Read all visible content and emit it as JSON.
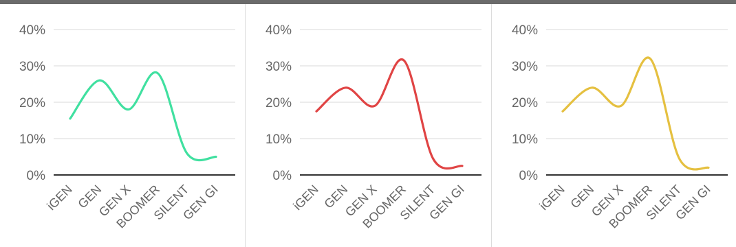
{
  "style": {
    "grid_color": "#d9d9d9",
    "axis_color": "#333333",
    "tick_color": "#666666"
  },
  "chart_data": [
    {
      "type": "line",
      "categories": [
        "iGEN",
        "GEN",
        "GEN X",
        "BOOMER",
        "SILENT",
        "GEN GI"
      ],
      "ylim": [
        0,
        40
      ],
      "yticks": [
        "0%",
        "10%",
        "20%",
        "30%",
        "40%"
      ],
      "grid": true,
      "series": [
        {
          "values": [
            15.5,
            26,
            18,
            28,
            6,
            5
          ],
          "color": "#40e0a0"
        }
      ]
    },
    {
      "type": "line",
      "categories": [
        "iGEN",
        "GEN",
        "GEN X",
        "BOOMER",
        "SILENT",
        "GEN GI"
      ],
      "ylim": [
        0,
        40
      ],
      "yticks": [
        "0%",
        "10%",
        "20%",
        "30%",
        "40%"
      ],
      "grid": true,
      "series": [
        {
          "values": [
            17.5,
            24,
            19,
            31.5,
            4.5,
            2.5
          ],
          "color": "#e04444"
        }
      ]
    },
    {
      "type": "line",
      "categories": [
        "iGEN",
        "GEN",
        "GEN X",
        "BOOMER",
        "SILENT",
        "GEN GI"
      ],
      "ylim": [
        0,
        40
      ],
      "yticks": [
        "0%",
        "10%",
        "20%",
        "30%",
        "40%"
      ],
      "grid": true,
      "series": [
        {
          "values": [
            17.5,
            24,
            19,
            32,
            4.5,
            2
          ]
        }
      ],
      "series_color": "#e5c040"
    }
  ]
}
